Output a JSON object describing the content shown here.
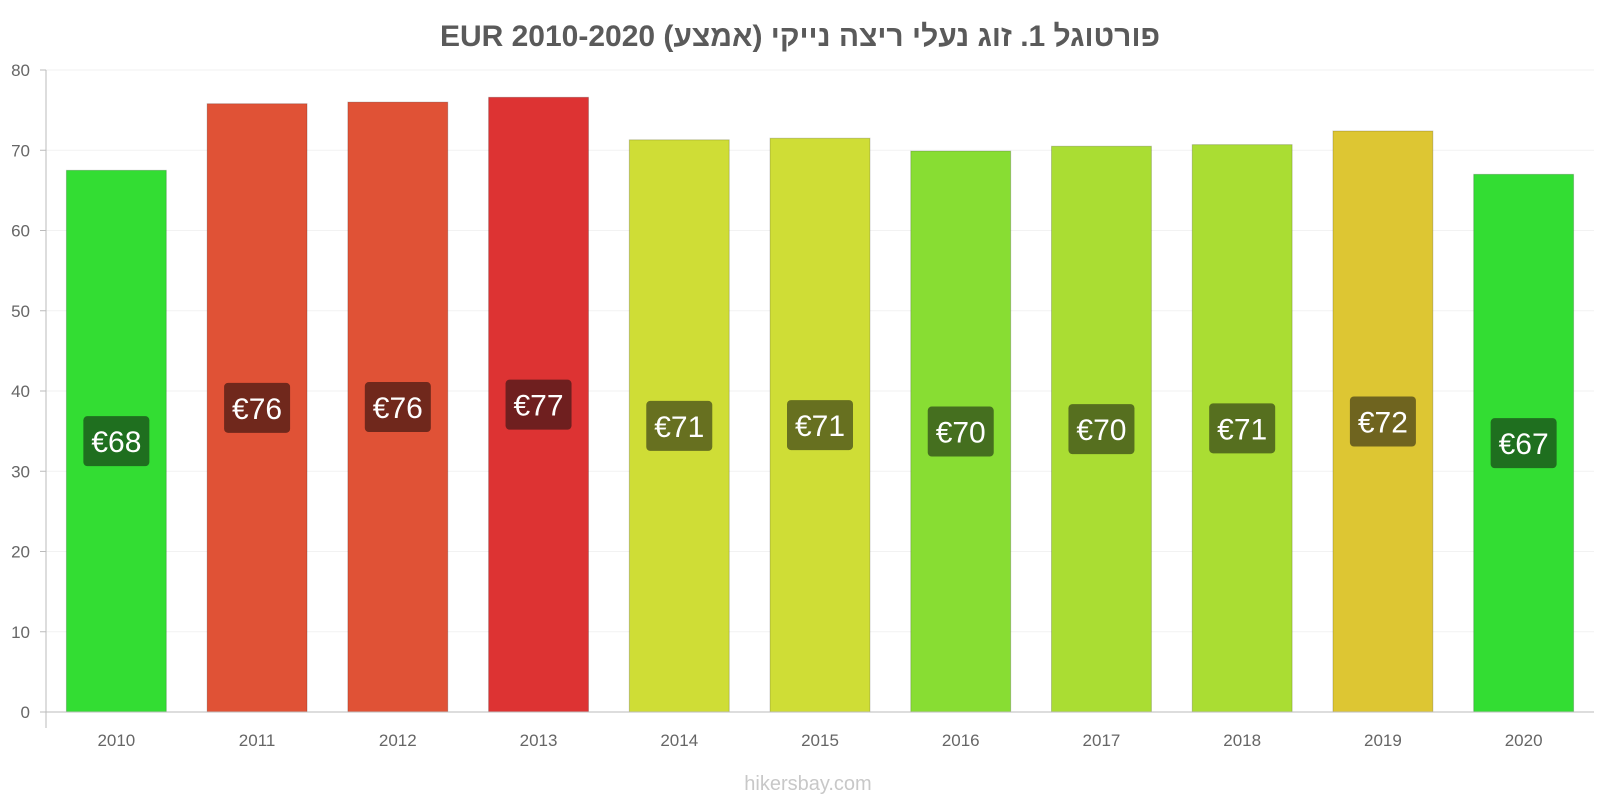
{
  "chart_data": {
    "type": "bar",
    "title": "פורטוגל 1. זוג נעלי ריצה נייקי (אמצע) EUR 2010-2020",
    "xlabel": "",
    "ylabel": "",
    "ylim": [
      0,
      80
    ],
    "yticks": [
      0,
      10,
      20,
      30,
      40,
      50,
      60,
      70,
      80
    ],
    "categories": [
      "2010",
      "2011",
      "2012",
      "2013",
      "2014",
      "2015",
      "2016",
      "2017",
      "2018",
      "2019",
      "2020"
    ],
    "values": [
      67.5,
      75.8,
      76.0,
      76.6,
      71.3,
      71.5,
      69.9,
      70.5,
      70.7,
      72.4,
      67.0
    ],
    "data_labels": [
      "€68",
      "€76",
      "€76",
      "€77",
      "€71",
      "€71",
      "€70",
      "€70",
      "€71",
      "€72",
      "€67"
    ],
    "bar_colors": [
      "#33dd33",
      "#e05236",
      "#e05236",
      "#dd3333",
      "#cfdd36",
      "#cfdd36",
      "#88dd33",
      "#aadd33",
      "#aadd33",
      "#ddc633",
      "#33dd33"
    ],
    "label_bg_colors": [
      "#1f6f1f",
      "#70281c",
      "#70281c",
      "#6f1f1f",
      "#677020",
      "#677020",
      "#456f1f",
      "#566f1f",
      "#566f1f",
      "#6f641f",
      "#1f6f1f"
    ],
    "grid": true,
    "legend": "none"
  },
  "footer": {
    "credit": "hikersbay.com"
  }
}
